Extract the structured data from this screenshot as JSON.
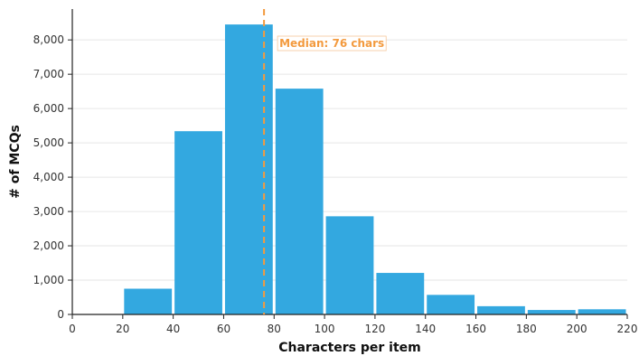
{
  "chart_data": {
    "type": "bar",
    "title": "",
    "xlabel": "Characters per item",
    "ylabel": "# of MCQs",
    "xlim": [
      0,
      220
    ],
    "ylim": [
      0,
      8900
    ],
    "grid": true,
    "bins": [
      {
        "x0": 20,
        "x1": 40,
        "value": 750
      },
      {
        "x0": 40,
        "x1": 60,
        "value": 5340
      },
      {
        "x0": 60,
        "x1": 80,
        "value": 8450
      },
      {
        "x0": 80,
        "x1": 100,
        "value": 6580
      },
      {
        "x0": 100,
        "x1": 120,
        "value": 2860
      },
      {
        "x0": 120,
        "x1": 140,
        "value": 1210
      },
      {
        "x0": 140,
        "x1": 160,
        "value": 570
      },
      {
        "x0": 160,
        "x1": 180,
        "value": 240
      },
      {
        "x0": 180,
        "x1": 200,
        "value": 130
      },
      {
        "x0": 200,
        "x1": 220,
        "value": 150
      }
    ],
    "x_ticks": [
      {
        "value": 0,
        "label": "0"
      },
      {
        "value": 20,
        "label": "20"
      },
      {
        "value": 40,
        "label": "40"
      },
      {
        "value": 60,
        "label": "60"
      },
      {
        "value": 80,
        "label": "80"
      },
      {
        "value": 100,
        "label": "100"
      },
      {
        "value": 120,
        "label": "120"
      },
      {
        "value": 140,
        "label": "140"
      },
      {
        "value": 160,
        "label": "160"
      },
      {
        "value": 180,
        "label": "180"
      },
      {
        "value": 200,
        "label": "200"
      },
      {
        "value": 220,
        "label": "220"
      }
    ],
    "y_ticks": [
      {
        "value": 0,
        "label": "0"
      },
      {
        "value": 1000,
        "label": "1,000"
      },
      {
        "value": 2000,
        "label": "2,000"
      },
      {
        "value": 3000,
        "label": "3,000"
      },
      {
        "value": 4000,
        "label": "4,000"
      },
      {
        "value": 5000,
        "label": "5,000"
      },
      {
        "value": 6000,
        "label": "6,000"
      },
      {
        "value": 7000,
        "label": "7,000"
      },
      {
        "value": 8000,
        "label": "8,000"
      }
    ],
    "median_line": {
      "x": 76,
      "label": "Median: 76 chars"
    },
    "colors": {
      "bar": "#33a8e0",
      "median": "#f39a3e",
      "grid": "#e6e6e6",
      "axis": "#222222"
    }
  }
}
